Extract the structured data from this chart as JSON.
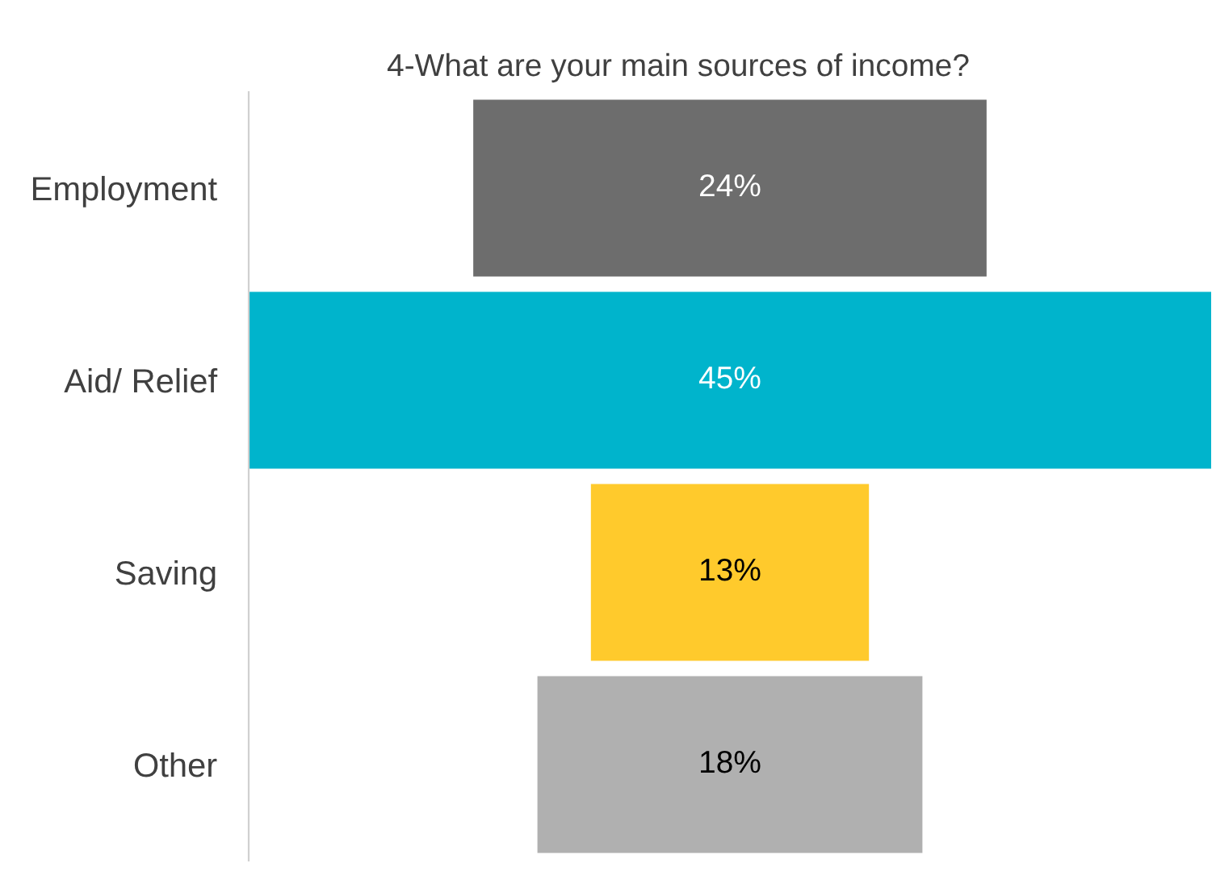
{
  "chart_data": {
    "type": "other",
    "title": "4-What are your main sources of income?",
    "categories": [
      "Employment",
      "Aid/ Relief",
      "Saving",
      "Other"
    ],
    "values": [
      24,
      45,
      13,
      18
    ],
    "colors": [
      "#6d6d6d",
      "#00b4cc",
      "#ffca2c",
      "#b0b0b0"
    ],
    "value_labels": [
      "24%",
      "45%",
      "13%",
      "18%"
    ]
  }
}
